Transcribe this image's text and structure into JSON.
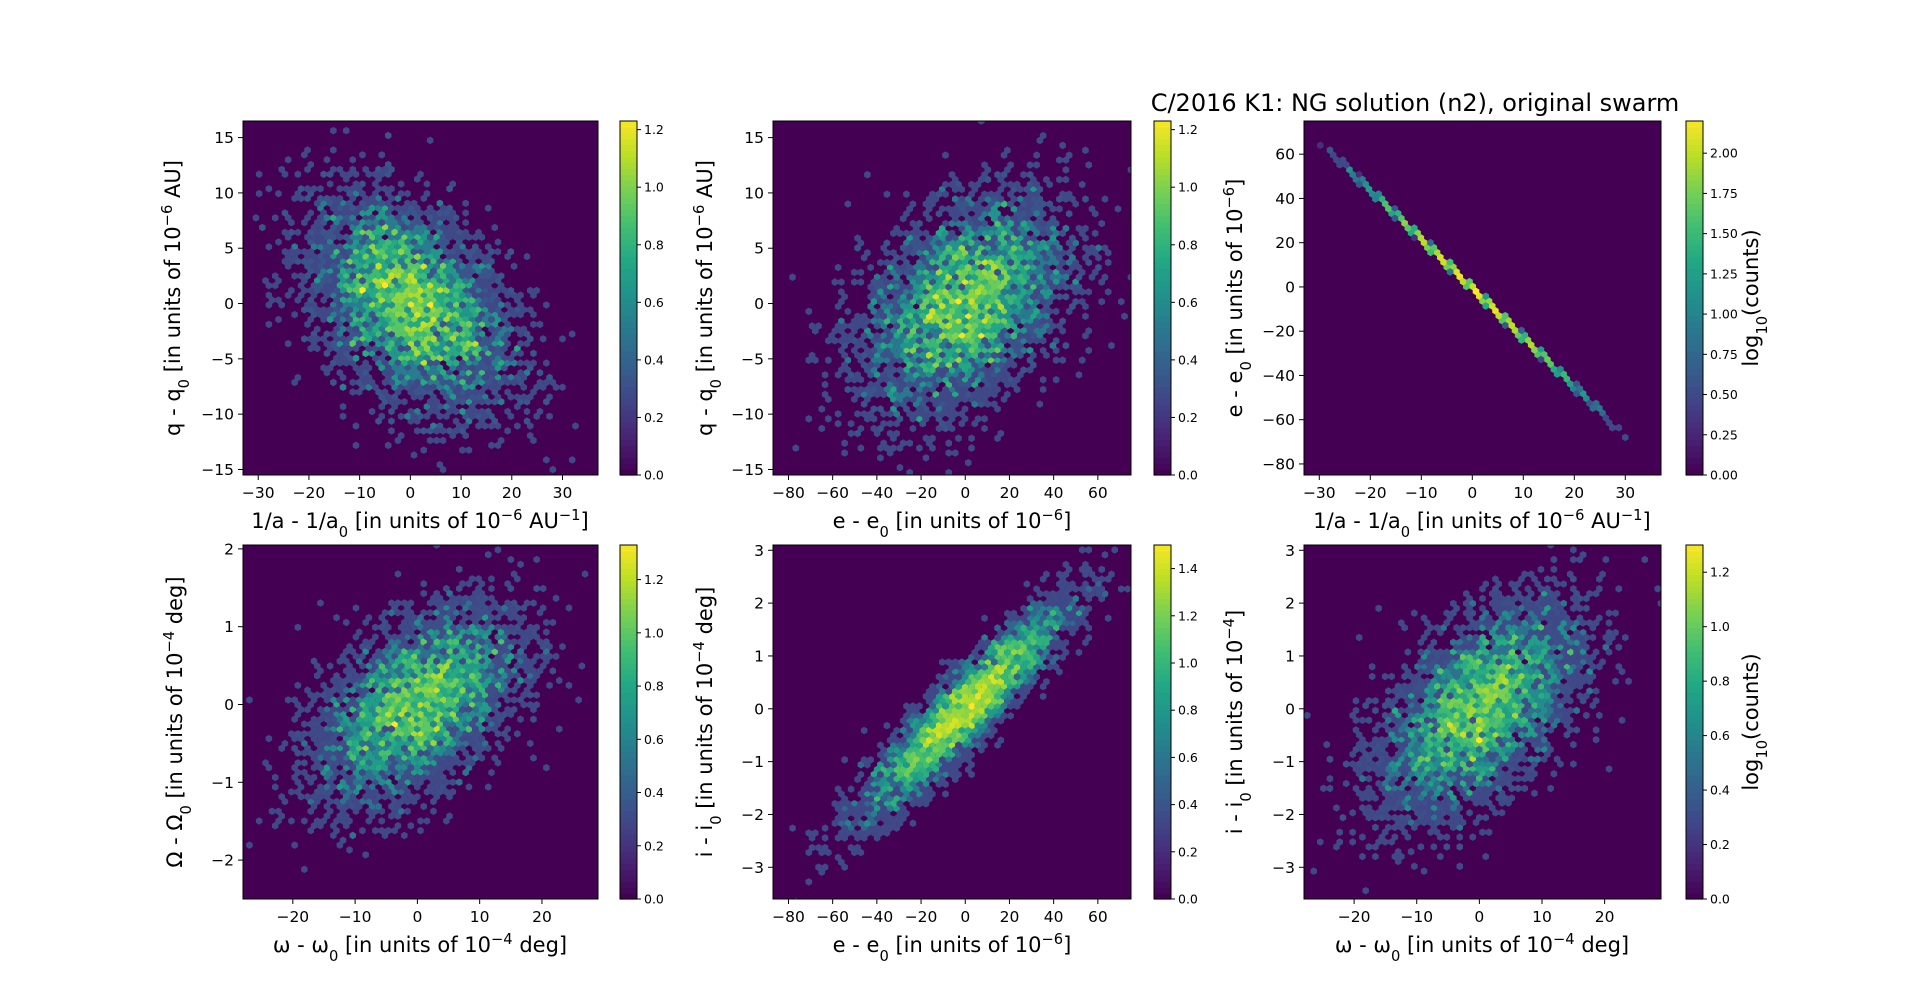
{
  "figure": {
    "suptitle": "C/2016 K1: NG solution (n2),  original swarm"
  },
  "chart_data": [
    {
      "type": "hexbin",
      "id": "p1",
      "xlabel_parts": [
        "1/a - 1/a",
        "0",
        " [in units of 10",
        "−6",
        " AU",
        "−1",
        "]"
      ],
      "ylabel_parts": [
        "q - q",
        "0",
        " [in units of 10",
        "−6",
        " AU]"
      ],
      "xlim": [
        -33,
        37
      ],
      "ylim": [
        -15.5,
        16.5
      ],
      "xticks": [
        -30,
        -20,
        -10,
        0,
        10,
        20,
        30
      ],
      "yticks": [
        -15,
        -10,
        -5,
        0,
        5,
        10,
        15
      ],
      "distribution": {
        "mean": [
          0,
          0
        ],
        "sd": [
          10,
          4.8
        ],
        "corr": -0.42
      },
      "colorbar": {
        "min": 0,
        "max": 1.23,
        "ticks": [
          "0.0",
          "0.2",
          "0.4",
          "0.6",
          "0.8",
          "1.0",
          "1.2"
        ],
        "tickvals": [
          0,
          0.2,
          0.4,
          0.6,
          0.8,
          1.0,
          1.2
        ],
        "label": ""
      }
    },
    {
      "type": "hexbin",
      "id": "p2",
      "xlabel_parts": [
        "e - e",
        "0",
        " [in units of 10",
        "−6",
        "]"
      ],
      "ylabel_parts": [
        "q - q",
        "0",
        " [in units of 10",
        "−6",
        " AU]"
      ],
      "xlim": [
        -87,
        75
      ],
      "ylim": [
        -15.5,
        16.5
      ],
      "xticks": [
        -80,
        -60,
        -40,
        -20,
        0,
        20,
        40,
        60
      ],
      "yticks": [
        -15,
        -10,
        -5,
        0,
        5,
        10,
        15
      ],
      "distribution": {
        "mean": [
          0,
          0
        ],
        "sd": [
          23,
          4.8
        ],
        "corr": 0.42
      },
      "colorbar": {
        "min": 0,
        "max": 1.23,
        "ticks": [
          "0.0",
          "0.2",
          "0.4",
          "0.6",
          "0.8",
          "1.0",
          "1.2"
        ],
        "tickvals": [
          0,
          0.2,
          0.4,
          0.6,
          0.8,
          1.0,
          1.2
        ],
        "label": ""
      }
    },
    {
      "type": "hexbin-line",
      "id": "p3",
      "xlabel_parts": [
        "1/a - 1/a",
        "0",
        " [in units of 10",
        "−6",
        " AU",
        "−1",
        "]"
      ],
      "ylabel_parts": [
        "e - e",
        "0",
        " [in units of 10",
        "−6",
        "]"
      ],
      "xlim": [
        -33,
        37
      ],
      "ylim": [
        -85,
        75
      ],
      "xticks": [
        -30,
        -20,
        -10,
        0,
        10,
        20,
        30
      ],
      "yticks": [
        -80,
        -60,
        -40,
        -20,
        0,
        20,
        40,
        60
      ],
      "line": {
        "x_start": -29.5,
        "y_start": 65,
        "x_end": 33,
        "y_end": -74,
        "x_sd": 10
      },
      "colorbar": {
        "min": 0,
        "max": 2.2,
        "ticks": [
          "0.00",
          "0.25",
          "0.50",
          "0.75",
          "1.00",
          "1.25",
          "1.50",
          "1.75",
          "2.00"
        ],
        "tickvals": [
          0,
          0.25,
          0.5,
          0.75,
          1.0,
          1.25,
          1.5,
          1.75,
          2.0
        ],
        "label_parts": [
          "log",
          "10",
          "(counts)"
        ]
      }
    },
    {
      "type": "hexbin",
      "id": "p4",
      "xlabel_parts": [
        "ω - ω",
        "0",
        " [in units of 10",
        "−4",
        " deg]"
      ],
      "ylabel_parts": [
        "Ω - Ω",
        "0",
        " [in units of 10",
        "−4",
        " deg]"
      ],
      "xlim": [
        -28,
        29
      ],
      "ylim": [
        -2.5,
        2.05
      ],
      "xticks": [
        -20,
        -10,
        0,
        10,
        20
      ],
      "yticks": [
        -2,
        -1,
        0,
        1,
        2
      ],
      "distribution": {
        "mean": [
          0,
          0
        ],
        "sd": [
          8,
          0.62
        ],
        "corr": 0.5
      },
      "colorbar": {
        "min": 0,
        "max": 1.33,
        "ticks": [
          "0.0",
          "0.2",
          "0.4",
          "0.6",
          "0.8",
          "1.0",
          "1.2"
        ],
        "tickvals": [
          0,
          0.2,
          0.4,
          0.6,
          0.8,
          1.0,
          1.2
        ],
        "label": ""
      }
    },
    {
      "type": "hexbin",
      "id": "p5",
      "xlabel_parts": [
        "e - e",
        "0",
        " [in units of 10",
        "−6",
        "]"
      ],
      "ylabel_parts": [
        "i - i",
        "0",
        " [in units of 10",
        "−4",
        " deg]"
      ],
      "xlim": [
        -87,
        75
      ],
      "ylim": [
        -3.6,
        3.1
      ],
      "xticks": [
        -80,
        -60,
        -40,
        -20,
        0,
        20,
        40,
        60
      ],
      "yticks": [
        -3,
        -2,
        -1,
        0,
        1,
        2,
        3
      ],
      "distribution": {
        "mean": [
          0,
          0
        ],
        "sd": [
          23,
          1.0
        ],
        "corr": 0.92
      },
      "colorbar": {
        "min": 0,
        "max": 1.5,
        "ticks": [
          "0.0",
          "0.2",
          "0.4",
          "0.6",
          "0.8",
          "1.0",
          "1.2",
          "1.4"
        ],
        "tickvals": [
          0,
          0.2,
          0.4,
          0.6,
          0.8,
          1.0,
          1.2,
          1.4
        ],
        "label": ""
      }
    },
    {
      "type": "hexbin",
      "id": "p6",
      "xlabel_parts": [
        "ω - ω",
        "0",
        " [in units of 10",
        "−4",
        " deg]"
      ],
      "ylabel_parts": [
        "i - i",
        "0",
        " [in units of 10",
        "−4",
        "]"
      ],
      "xlim": [
        -28,
        29
      ],
      "ylim": [
        -3.6,
        3.1
      ],
      "xticks": [
        -20,
        -10,
        0,
        10,
        20
      ],
      "yticks": [
        -3,
        -2,
        -1,
        0,
        1,
        2,
        3
      ],
      "distribution": {
        "mean": [
          0,
          0
        ],
        "sd": [
          8,
          1.0
        ],
        "corr": 0.55
      },
      "colorbar": {
        "min": 0,
        "max": 1.3,
        "ticks": [
          "0.0",
          "0.2",
          "0.4",
          "0.6",
          "0.8",
          "1.0",
          "1.2"
        ],
        "tickvals": [
          0,
          0.2,
          0.4,
          0.6,
          0.8,
          1.0,
          1.2
        ],
        "label_parts": [
          "log",
          "10",
          "(counts)"
        ]
      }
    }
  ]
}
